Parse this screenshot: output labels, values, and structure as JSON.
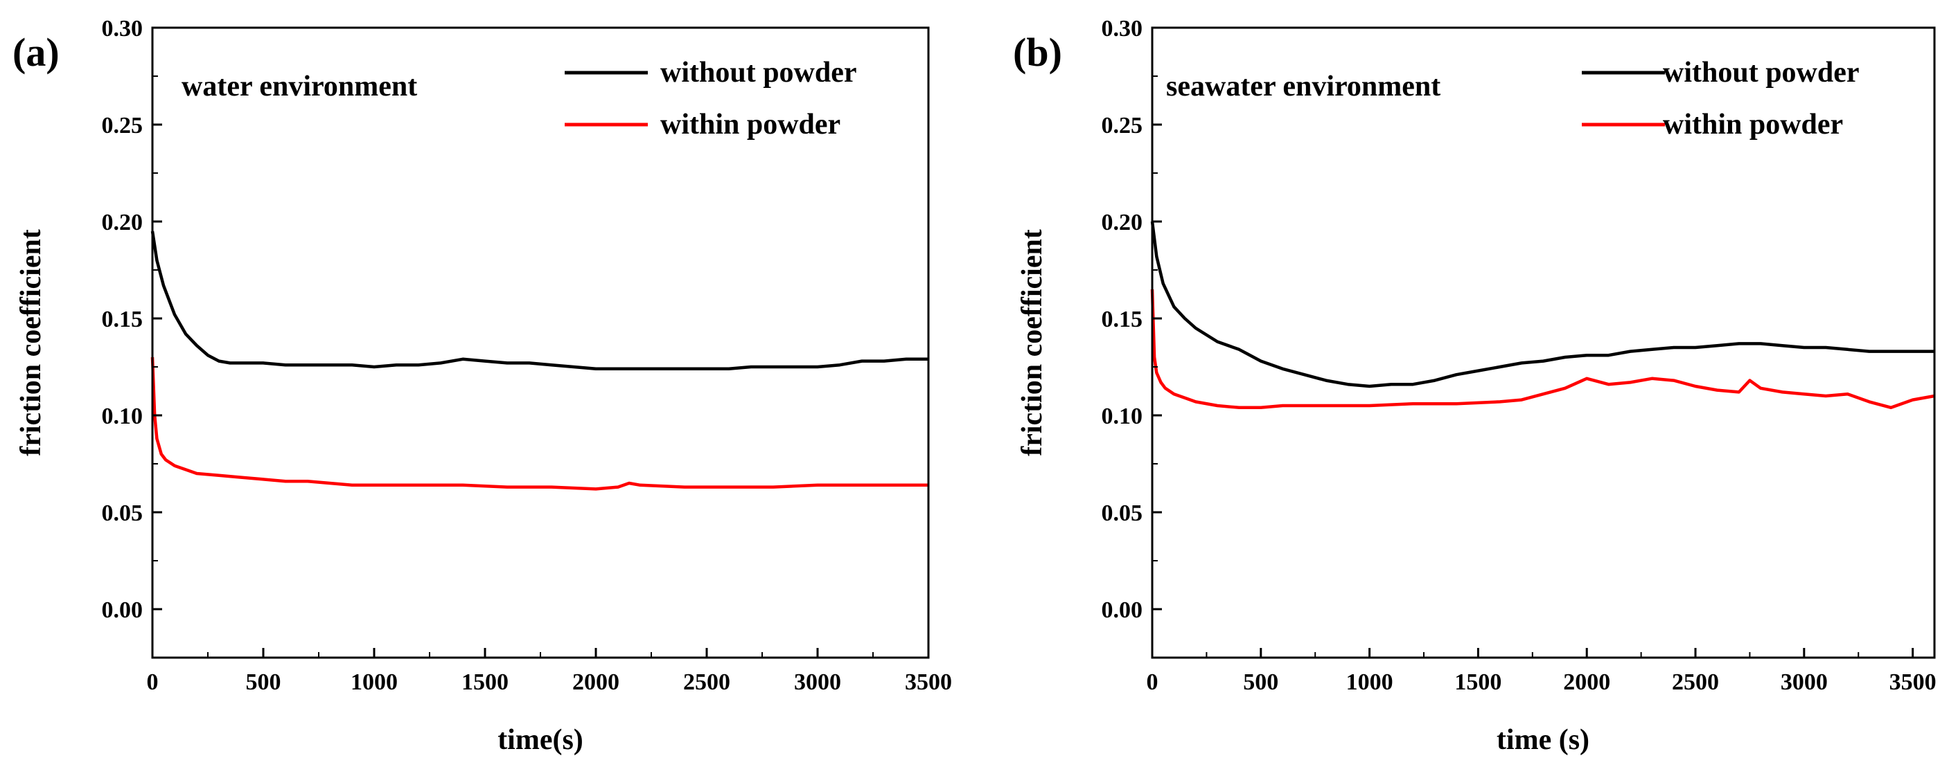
{
  "chart_data": [
    {
      "id": "a",
      "type": "line",
      "panel_label": "(a)",
      "annotation": "water environment",
      "xlabel": "time(s)",
      "ylabel": "friction coefficient",
      "xlim": [
        0,
        3500
      ],
      "ylim": [
        -0.025,
        0.3
      ],
      "xticks": [
        0,
        500,
        1000,
        1500,
        2000,
        2500,
        3000,
        3500
      ],
      "xtick_labels": [
        "0",
        "500",
        "1000",
        "1500",
        "2000",
        "2500",
        "3000",
        "3500"
      ],
      "yticks": [
        0.0,
        0.05,
        0.1,
        0.15,
        0.2,
        0.25,
        0.3
      ],
      "ytick_labels": [
        "0.00",
        "0.05",
        "0.10",
        "0.15",
        "0.20",
        "0.25",
        "0.30"
      ],
      "legend_position": "top-right",
      "series": [
        {
          "name": "without powder",
          "color": "#000000",
          "x": [
            0,
            20,
            50,
            100,
            150,
            200,
            250,
            300,
            350,
            400,
            500,
            600,
            700,
            800,
            900,
            1000,
            1100,
            1200,
            1300,
            1400,
            1500,
            1600,
            1700,
            1800,
            1900,
            2000,
            2100,
            2200,
            2300,
            2400,
            2500,
            2600,
            2700,
            2800,
            2900,
            3000,
            3100,
            3200,
            3300,
            3400,
            3500
          ],
          "values": [
            0.195,
            0.18,
            0.167,
            0.152,
            0.142,
            0.136,
            0.131,
            0.128,
            0.127,
            0.127,
            0.127,
            0.126,
            0.126,
            0.126,
            0.126,
            0.125,
            0.126,
            0.126,
            0.127,
            0.129,
            0.128,
            0.127,
            0.127,
            0.126,
            0.125,
            0.124,
            0.124,
            0.124,
            0.124,
            0.124,
            0.124,
            0.124,
            0.125,
            0.125,
            0.125,
            0.125,
            0.126,
            0.128,
            0.128,
            0.129,
            0.129
          ]
        },
        {
          "name": "within powder",
          "color": "#ff0000",
          "x": [
            0,
            10,
            20,
            40,
            60,
            100,
            150,
            200,
            300,
            400,
            500,
            600,
            700,
            800,
            900,
            1000,
            1200,
            1400,
            1600,
            1800,
            2000,
            2100,
            2150,
            2200,
            2400,
            2600,
            2800,
            3000,
            3200,
            3400,
            3500
          ],
          "values": [
            0.13,
            0.1,
            0.088,
            0.08,
            0.077,
            0.074,
            0.072,
            0.07,
            0.069,
            0.068,
            0.067,
            0.066,
            0.066,
            0.065,
            0.064,
            0.064,
            0.064,
            0.064,
            0.063,
            0.063,
            0.062,
            0.063,
            0.065,
            0.064,
            0.063,
            0.063,
            0.063,
            0.064,
            0.064,
            0.064,
            0.064
          ]
        }
      ]
    },
    {
      "id": "b",
      "type": "line",
      "panel_label": "(b)",
      "annotation": "seawater environment",
      "xlabel": "time (s)",
      "ylabel": "friction coefficient",
      "xlim": [
        0,
        3600
      ],
      "ylim": [
        -0.025,
        0.3
      ],
      "xticks": [
        0,
        500,
        1000,
        1500,
        2000,
        2500,
        3000,
        3500
      ],
      "xtick_labels": [
        "0",
        "500",
        "1000",
        "1500",
        "2000",
        "2500",
        "3000",
        "3500"
      ],
      "yticks": [
        0.0,
        0.05,
        0.1,
        0.15,
        0.2,
        0.25,
        0.3
      ],
      "ytick_labels": [
        "0.00",
        "0.05",
        "0.10",
        "0.15",
        "0.20",
        "0.25",
        "0.30"
      ],
      "legend_position": "top-right",
      "series": [
        {
          "name": "without powder",
          "color": "#000000",
          "x": [
            0,
            20,
            50,
            100,
            150,
            200,
            300,
            400,
            500,
            600,
            700,
            800,
            900,
            1000,
            1100,
            1200,
            1300,
            1400,
            1500,
            1600,
            1700,
            1800,
            1900,
            2000,
            2100,
            2200,
            2300,
            2400,
            2500,
            2600,
            2700,
            2800,
            2900,
            3000,
            3100,
            3200,
            3300,
            3400,
            3500,
            3600
          ],
          "values": [
            0.2,
            0.182,
            0.168,
            0.156,
            0.15,
            0.145,
            0.138,
            0.134,
            0.128,
            0.124,
            0.121,
            0.118,
            0.116,
            0.115,
            0.116,
            0.116,
            0.118,
            0.121,
            0.123,
            0.125,
            0.127,
            0.128,
            0.13,
            0.131,
            0.131,
            0.133,
            0.134,
            0.135,
            0.135,
            0.136,
            0.137,
            0.137,
            0.136,
            0.135,
            0.135,
            0.134,
            0.133,
            0.133,
            0.133,
            0.133
          ]
        },
        {
          "name": "within powder",
          "color": "#ff0000",
          "x": [
            0,
            10,
            20,
            40,
            60,
            100,
            150,
            200,
            300,
            400,
            500,
            600,
            800,
            1000,
            1200,
            1400,
            1600,
            1700,
            1800,
            1900,
            2000,
            2100,
            2200,
            2300,
            2400,
            2500,
            2600,
            2700,
            2750,
            2800,
            2900,
            3000,
            3100,
            3200,
            3300,
            3400,
            3500,
            3600
          ],
          "values": [
            0.165,
            0.13,
            0.122,
            0.117,
            0.114,
            0.111,
            0.109,
            0.107,
            0.105,
            0.104,
            0.104,
            0.105,
            0.105,
            0.105,
            0.106,
            0.106,
            0.107,
            0.108,
            0.111,
            0.114,
            0.119,
            0.116,
            0.117,
            0.119,
            0.118,
            0.115,
            0.113,
            0.112,
            0.118,
            0.114,
            0.112,
            0.111,
            0.11,
            0.111,
            0.107,
            0.104,
            0.108,
            0.11
          ]
        }
      ]
    }
  ]
}
